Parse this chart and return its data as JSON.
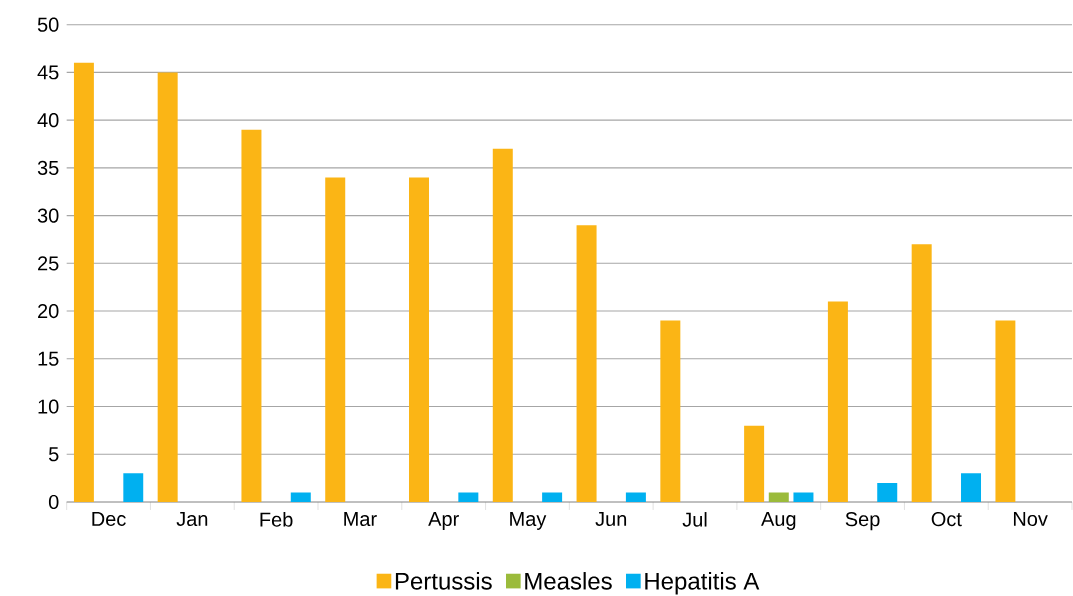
{
  "chart_data": {
    "type": "bar",
    "categories": [
      "Dec",
      "Jan",
      "Feb",
      "Mar",
      "Apr",
      "May",
      "Jun",
      "Jul",
      "Aug",
      "Sep",
      "Oct",
      "Nov"
    ],
    "series": [
      {
        "name": "Pertussis",
        "color": "#fbb515",
        "values": [
          46,
          45,
          39,
          34,
          34,
          37,
          29,
          19,
          8,
          21,
          27,
          19
        ]
      },
      {
        "name": "Measles",
        "color": "#9bbb3b",
        "values": [
          0,
          0,
          0,
          0,
          0,
          0,
          0,
          0,
          1,
          0,
          0,
          0
        ]
      },
      {
        "name": "Hepatitis A",
        "color": "#00b0f0",
        "values": [
          3,
          0,
          1,
          0,
          1,
          1,
          1,
          0,
          1,
          2,
          3,
          0
        ]
      }
    ],
    "ylim": [
      0,
      50
    ],
    "yticks": [
      0,
      5,
      10,
      15,
      20,
      25,
      30,
      35,
      40,
      45,
      50
    ],
    "grid": "y",
    "legend": "bottom"
  }
}
